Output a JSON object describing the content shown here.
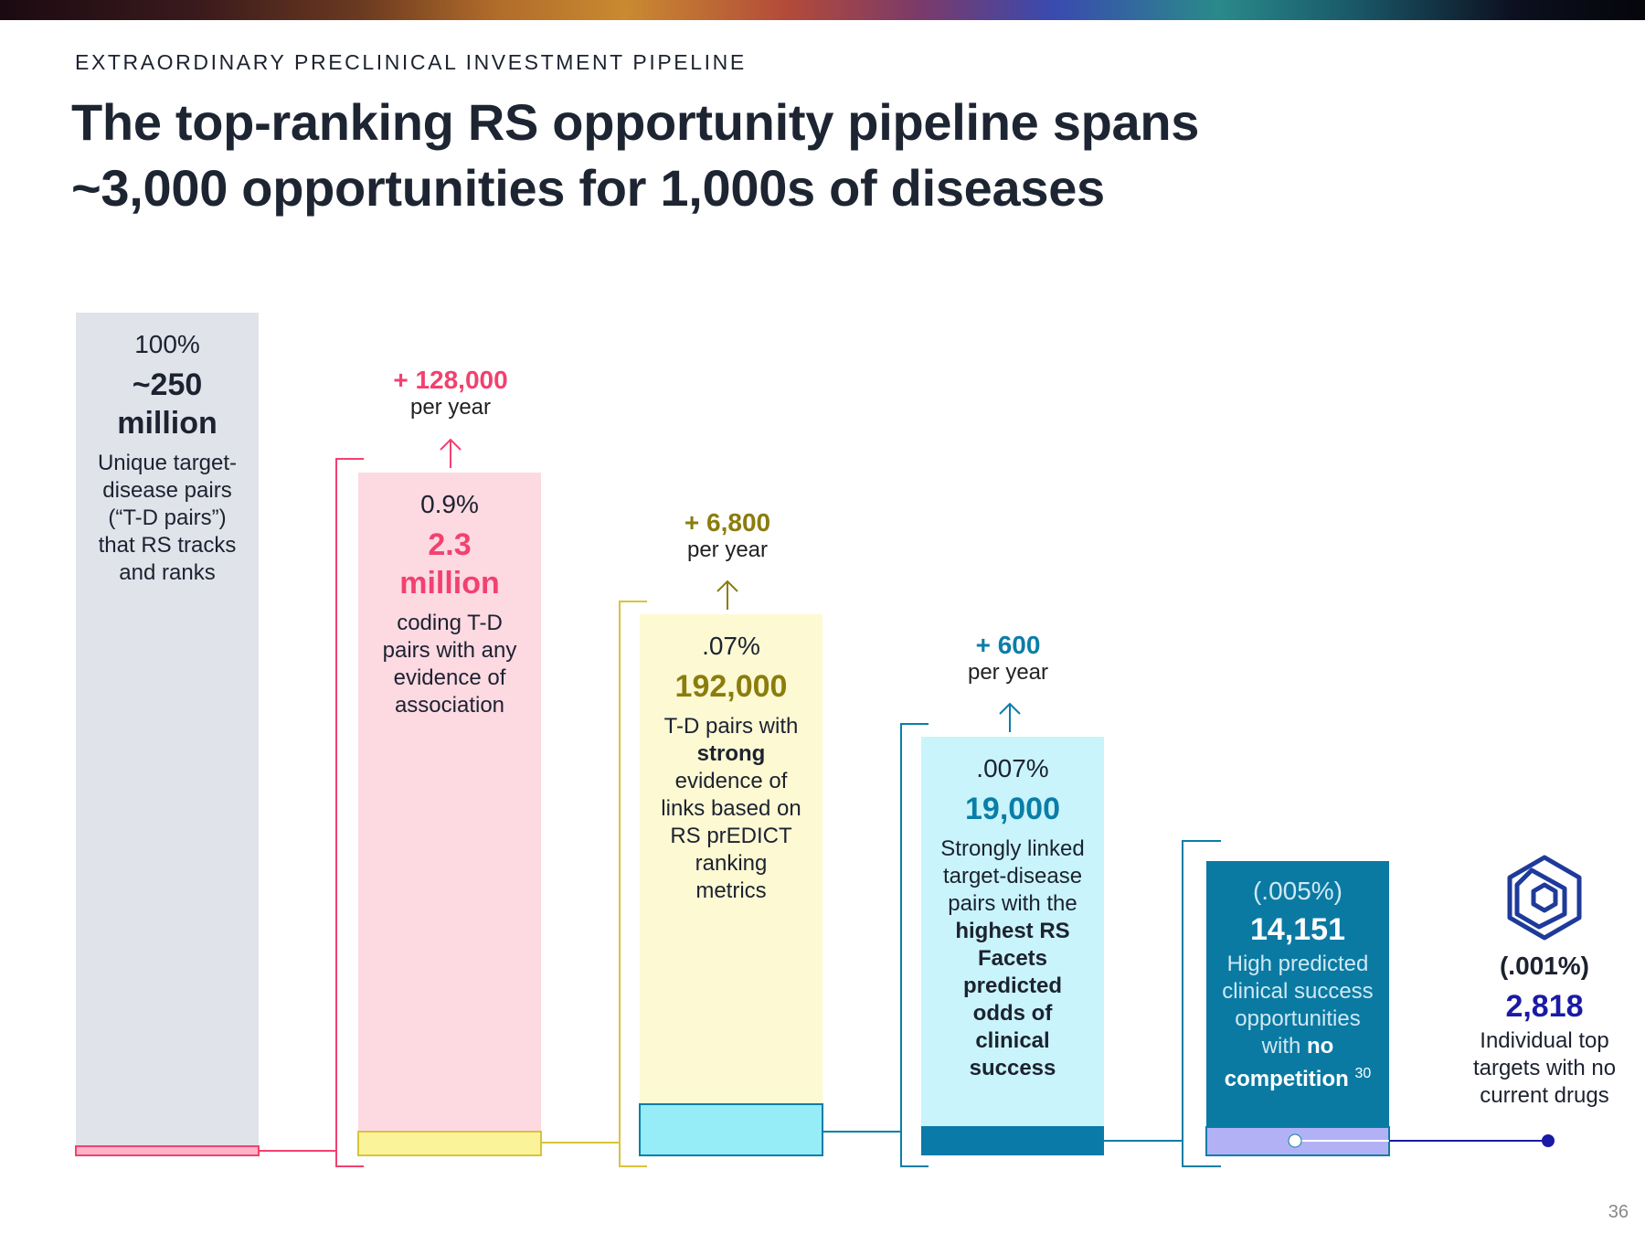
{
  "kicker": "EXTRAORDINARY PRECLINICAL INVESTMENT PIPELINE",
  "title_line1": "The top-ranking RS opportunity pipeline spans",
  "title_line2": "~3,000 opportunities for 1,000s of diseases",
  "page_number": "36",
  "colors": {
    "gray_bar": "#e0e3ea",
    "pink_bar": "#fdd9e2",
    "pink_accent": "#f2416f",
    "yellow_bar": "#fdf9d3",
    "yellow_accent": "#8a7d0d",
    "yellow_line": "#d8c43a",
    "cyan_bar": "#c9f4fb",
    "cyan_strip": "#96ecf7",
    "blue_accent": "#0a7ea8",
    "teal_bar": "#0b7aa3",
    "teal_strip": "#0a7aa8",
    "lavender_strip": "#b3b1f5",
    "navy": "#1a1aa6"
  },
  "chart_data": {
    "type": "bar",
    "title": "The top-ranking RS opportunity pipeline spans ~3,000 opportunities for 1,000s of diseases",
    "categories": [
      "Unique target-disease pairs",
      "coding T-D pairs with any evidence of association",
      "T-D pairs with strong evidence",
      "Strongly linked target-disease pairs",
      "High predicted clinical success opportunities with no competition",
      "Individual top targets with no current drugs"
    ],
    "percents": [
      "100%",
      "0.9%",
      ".07%",
      ".007%",
      "(.005%)",
      "(.001%)"
    ],
    "values": [
      250000000,
      2300000,
      192000,
      19000,
      14151,
      2818
    ],
    "labels": [
      "~250 million",
      "2.3 million",
      "192,000",
      "19,000",
      "14,151",
      "2,818"
    ],
    "annual_additions": [
      "+ 128,000",
      "+ 6,800",
      "+ 600"
    ],
    "per_year_label": "per year"
  },
  "stages": [
    {
      "pct": "100%",
      "value_l1": "~250",
      "value_l2": "million",
      "desc": [
        "Unique target-",
        "disease pairs",
        "(“T-D pairs”)",
        "that RS tracks",
        "and ranks"
      ]
    },
    {
      "pct": "0.9%",
      "value_l1": "2.3",
      "value_l2": "million",
      "desc": [
        "coding T-D",
        "pairs with any",
        "evidence of",
        "association"
      ]
    },
    {
      "pct": ".07%",
      "value": "192,000",
      "desc_a": "T-D pairs with",
      "desc_b": "strong",
      "desc_c": [
        "evidence of",
        "links based on",
        "RS prEDICT",
        "ranking",
        "metrics"
      ]
    },
    {
      "pct": ".007%",
      "value": "19,000",
      "desc_a": [
        "Strongly linked",
        "target-disease",
        "pairs with the"
      ],
      "desc_b": [
        "highest RS",
        "Facets",
        "predicted",
        "odds of",
        "clinical",
        "success"
      ]
    },
    {
      "pct": "(.005%)",
      "value": "14,151",
      "desc_a": [
        "High predicted",
        "clinical success",
        "opportunities"
      ],
      "desc_b": "with",
      "desc_c": "no",
      "desc_d": "competition",
      "footnote": "30"
    },
    {
      "pct": "(.001%)",
      "value": "2,818",
      "desc": [
        "Individual top",
        "targets with no",
        "current drugs"
      ]
    }
  ],
  "additions": [
    {
      "num": "+ 128,000",
      "sub": "per year"
    },
    {
      "num": "+ 6,800",
      "sub": "per year"
    },
    {
      "num": "+ 600",
      "sub": "per year"
    }
  ],
  "logo_icon": "rs-logo-icon"
}
